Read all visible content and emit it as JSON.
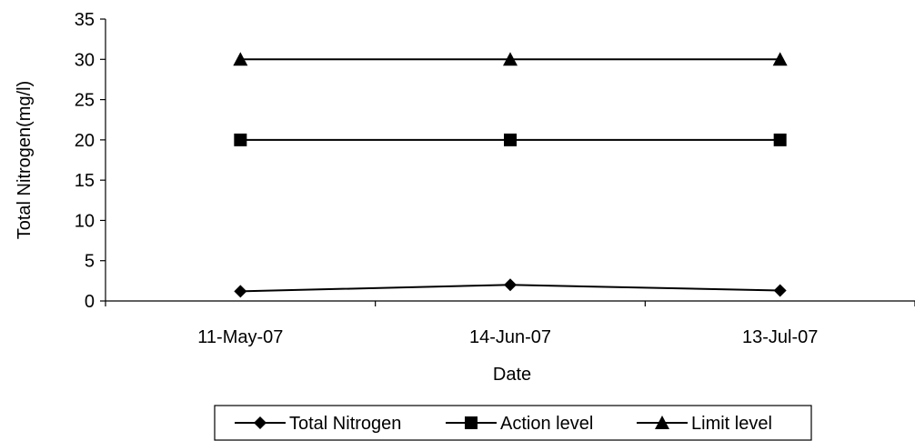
{
  "chart_data": {
    "type": "line",
    "title": "",
    "xlabel": "Date",
    "ylabel": "Total Nitrogen(mg/l)",
    "categories": [
      "11-May-07",
      "14-Jun-07",
      "13-Jul-07"
    ],
    "ylim": [
      0,
      35
    ],
    "yticks": [
      0,
      5,
      10,
      15,
      20,
      25,
      30,
      35
    ],
    "grid": false,
    "legend_position": "bottom",
    "series": [
      {
        "name": "Total Nitrogen",
        "values": [
          1.2,
          2.0,
          1.3
        ],
        "marker": "diamond",
        "color": "#000000"
      },
      {
        "name": "Action level",
        "values": [
          20,
          20,
          20
        ],
        "marker": "square",
        "color": "#000000"
      },
      {
        "name": "Limit level",
        "values": [
          30,
          30,
          30
        ],
        "marker": "triangle",
        "color": "#000000"
      }
    ]
  }
}
